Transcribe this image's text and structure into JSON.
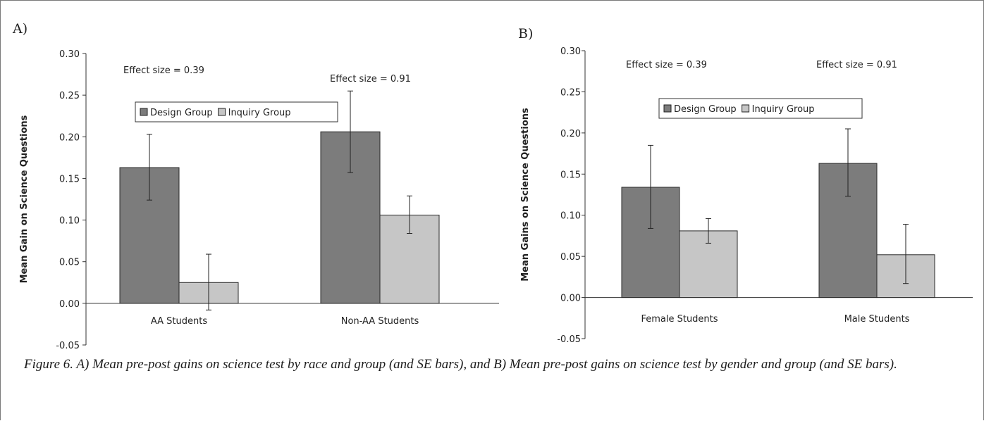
{
  "colors": {
    "design_bar": "#7c7c7c",
    "inquiry_bar": "#c6c6c6",
    "axis": "#333333"
  },
  "caption": "Figure 6. A) Mean pre-post gains on science test by race and group (and SE bars), and B) Mean pre-post gains on science test by gender and group (and SE bars).",
  "chart_data": [
    {
      "type": "bar",
      "panel_label": "A)",
      "title": "",
      "xlabel": "",
      "ylabel": "Mean Gain on Science Questions",
      "ylim": [
        -0.05,
        0.3
      ],
      "yticks": [
        "0.30",
        "0.25",
        "0.20",
        "0.15",
        "0.10",
        "0.05",
        "0.00",
        "-0.05"
      ],
      "categories": [
        "AA Students",
        "Non-AA Students"
      ],
      "legend": "inside-top",
      "grid": false,
      "series": [
        {
          "name": "Design Group",
          "values": [
            0.163,
            0.206
          ],
          "se_low": [
            0.124,
            0.157
          ],
          "se_high": [
            0.203,
            0.255
          ]
        },
        {
          "name": "Inquiry Group",
          "values": [
            0.025,
            0.106
          ],
          "se_low": [
            -0.008,
            0.084
          ],
          "se_high": [
            0.059,
            0.129
          ]
        }
      ],
      "annotations": [
        "Effect size = 0.39",
        "Effect size = 0.91"
      ]
    },
    {
      "type": "bar",
      "panel_label": "B)",
      "title": "",
      "xlabel": "",
      "ylabel": "Mean Gains on Science Questions",
      "ylim": [
        -0.05,
        0.3
      ],
      "yticks": [
        "0.30",
        "0.25",
        "0.20",
        "0.15",
        "0.10",
        "0.05",
        "0.00",
        "-0.05"
      ],
      "categories": [
        "Female Students",
        "Male Students"
      ],
      "legend": "inside-top",
      "grid": false,
      "series": [
        {
          "name": "Design Group",
          "values": [
            0.134,
            0.163
          ],
          "se_low": [
            0.084,
            0.123
          ],
          "se_high": [
            0.185,
            0.205
          ]
        },
        {
          "name": "Inquiry Group",
          "values": [
            0.081,
            0.052
          ],
          "se_low": [
            0.066,
            0.017
          ],
          "se_high": [
            0.096,
            0.089
          ]
        }
      ],
      "annotations": [
        "Effect size = 0.39",
        "Effect size = 0.91"
      ]
    }
  ]
}
